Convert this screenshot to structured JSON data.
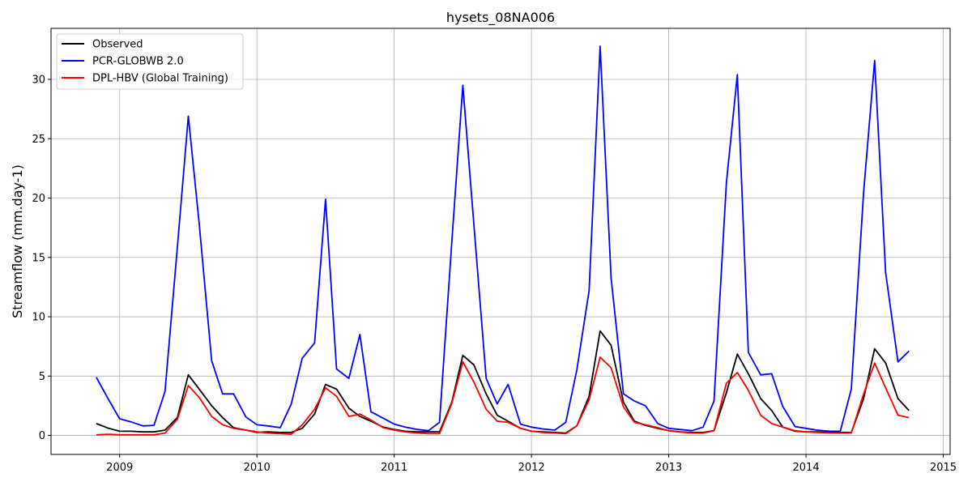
{
  "chart_data": {
    "type": "line",
    "title": "hysets_08NA006",
    "xlabel": "",
    "ylabel": "Streamflow (mm.day-1)",
    "xlim": [
      2008.5,
      2015.05
    ],
    "ylim": [
      -1.6,
      34.3
    ],
    "xticks": [
      2009,
      2010,
      2011,
      2012,
      2013,
      2014,
      2015
    ],
    "xtick_labels": [
      "2009",
      "2010",
      "2011",
      "2012",
      "2013",
      "2014",
      "2015"
    ],
    "yticks": [
      0,
      5,
      10,
      15,
      20,
      25,
      30
    ],
    "ytick_labels": [
      "0",
      "5",
      "10",
      "15",
      "20",
      "25",
      "30"
    ],
    "grid": true,
    "legend_position": "top-left",
    "x": [
      2008.83,
      2008.92,
      2009.0,
      2009.08,
      2009.17,
      2009.25,
      2009.33,
      2009.42,
      2009.5,
      2009.58,
      2009.67,
      2009.75,
      2009.83,
      2009.92,
      2010.0,
      2010.08,
      2010.17,
      2010.25,
      2010.33,
      2010.42,
      2010.5,
      2010.58,
      2010.67,
      2010.75,
      2010.83,
      2010.92,
      2011.0,
      2011.08,
      2011.17,
      2011.25,
      2011.33,
      2011.42,
      2011.5,
      2011.58,
      2011.67,
      2011.75,
      2011.83,
      2011.92,
      2012.0,
      2012.08,
      2012.17,
      2012.25,
      2012.33,
      2012.42,
      2012.5,
      2012.58,
      2012.67,
      2012.75,
      2012.83,
      2012.92,
      2013.0,
      2013.08,
      2013.17,
      2013.25,
      2013.33,
      2013.42,
      2013.5,
      2013.58,
      2013.67,
      2013.75,
      2013.83,
      2013.92,
      2014.0,
      2014.08,
      2014.17,
      2014.25,
      2014.33,
      2014.42,
      2014.5,
      2014.58,
      2014.67,
      2014.75
    ],
    "series": [
      {
        "name": "Observed",
        "color": "#000000",
        "values": [
          1.0,
          0.6,
          0.35,
          0.35,
          0.3,
          0.3,
          0.45,
          1.5,
          5.1,
          3.9,
          2.5,
          1.5,
          0.65,
          0.45,
          0.25,
          0.3,
          0.25,
          0.25,
          0.6,
          1.8,
          4.3,
          3.9,
          2.3,
          1.6,
          1.2,
          0.7,
          0.5,
          0.35,
          0.3,
          0.3,
          0.3,
          2.8,
          6.75,
          5.95,
          3.5,
          1.7,
          1.2,
          0.6,
          0.35,
          0.3,
          0.25,
          0.2,
          0.8,
          3.3,
          8.8,
          7.6,
          2.8,
          1.2,
          0.85,
          0.6,
          0.4,
          0.3,
          0.25,
          0.25,
          0.4,
          3.6,
          6.85,
          5.2,
          3.1,
          2.1,
          0.7,
          0.35,
          0.3,
          0.3,
          0.25,
          0.25,
          0.25,
          3.1,
          7.3,
          6.1,
          3.1,
          2.1
        ]
      },
      {
        "name": "PCR-GLOBWB 2.0",
        "color": "#0000ff",
        "values": [
          4.9,
          3.0,
          1.4,
          1.15,
          0.8,
          0.85,
          3.7,
          15.8,
          26.9,
          17.8,
          6.3,
          3.5,
          3.5,
          1.55,
          0.9,
          0.8,
          0.65,
          2.65,
          6.5,
          7.8,
          19.9,
          5.6,
          4.8,
          8.5,
          2.0,
          1.45,
          0.95,
          0.7,
          0.5,
          0.4,
          1.1,
          16.3,
          29.5,
          17.8,
          4.8,
          2.65,
          4.3,
          0.95,
          0.7,
          0.55,
          0.45,
          1.1,
          5.5,
          12.2,
          32.8,
          13.3,
          3.5,
          2.9,
          2.5,
          1.0,
          0.6,
          0.5,
          0.4,
          0.7,
          2.9,
          21.3,
          30.4,
          7.0,
          5.1,
          5.2,
          2.45,
          0.75,
          0.6,
          0.45,
          0.35,
          0.35,
          3.9,
          20.5,
          31.6,
          13.7,
          6.2,
          7.1
        ]
      },
      {
        "name": "DPL-HBV (Global Training)",
        "color": "#ff0000",
        "values": [
          0.05,
          0.1,
          0.05,
          0.05,
          0.05,
          0.05,
          0.2,
          1.35,
          4.2,
          3.2,
          1.6,
          0.9,
          0.6,
          0.45,
          0.3,
          0.2,
          0.15,
          0.1,
          0.9,
          2.2,
          4.0,
          3.3,
          1.6,
          1.8,
          1.3,
          0.65,
          0.45,
          0.3,
          0.2,
          0.15,
          0.15,
          2.7,
          6.2,
          4.5,
          2.2,
          1.2,
          1.1,
          0.6,
          0.35,
          0.25,
          0.2,
          0.15,
          0.8,
          3.0,
          6.6,
          5.7,
          2.4,
          1.1,
          0.9,
          0.65,
          0.4,
          0.3,
          0.2,
          0.2,
          0.4,
          4.4,
          5.3,
          3.8,
          1.7,
          1.0,
          0.7,
          0.4,
          0.3,
          0.25,
          0.2,
          0.2,
          0.2,
          3.5,
          6.1,
          4.0,
          1.7,
          1.5
        ]
      }
    ]
  }
}
